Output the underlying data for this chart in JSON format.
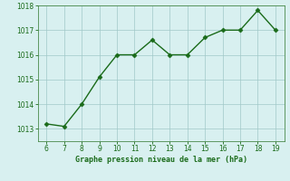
{
  "x": [
    6,
    7,
    8,
    9,
    10,
    11,
    12,
    13,
    14,
    15,
    16,
    17,
    18,
    19
  ],
  "y": [
    1013.2,
    1013.1,
    1014.0,
    1015.1,
    1016.0,
    1016.0,
    1016.6,
    1016.0,
    1016.0,
    1016.7,
    1017.0,
    1017.0,
    1017.8,
    1017.0
  ],
  "line_color": "#1a6b1a",
  "marker": "D",
  "markersize": 2.5,
  "linewidth": 1.0,
  "background_color": "#d8f0f0",
  "grid_color": "#a0c8c8",
  "xlabel": "Graphe pression niveau de la mer (hPa)",
  "xlabel_color": "#1a6b1a",
  "tick_color": "#1a6b1a",
  "spine_color": "#4a8a4a",
  "ylim": [
    1012.5,
    1018.0
  ],
  "xlim": [
    5.5,
    19.5
  ],
  "yticks": [
    1013,
    1014,
    1015,
    1016,
    1017,
    1018
  ],
  "xticks": [
    6,
    7,
    8,
    9,
    10,
    11,
    12,
    13,
    14,
    15,
    16,
    17,
    18,
    19
  ],
  "tick_fontsize": 5.5,
  "xlabel_fontsize": 6.0
}
